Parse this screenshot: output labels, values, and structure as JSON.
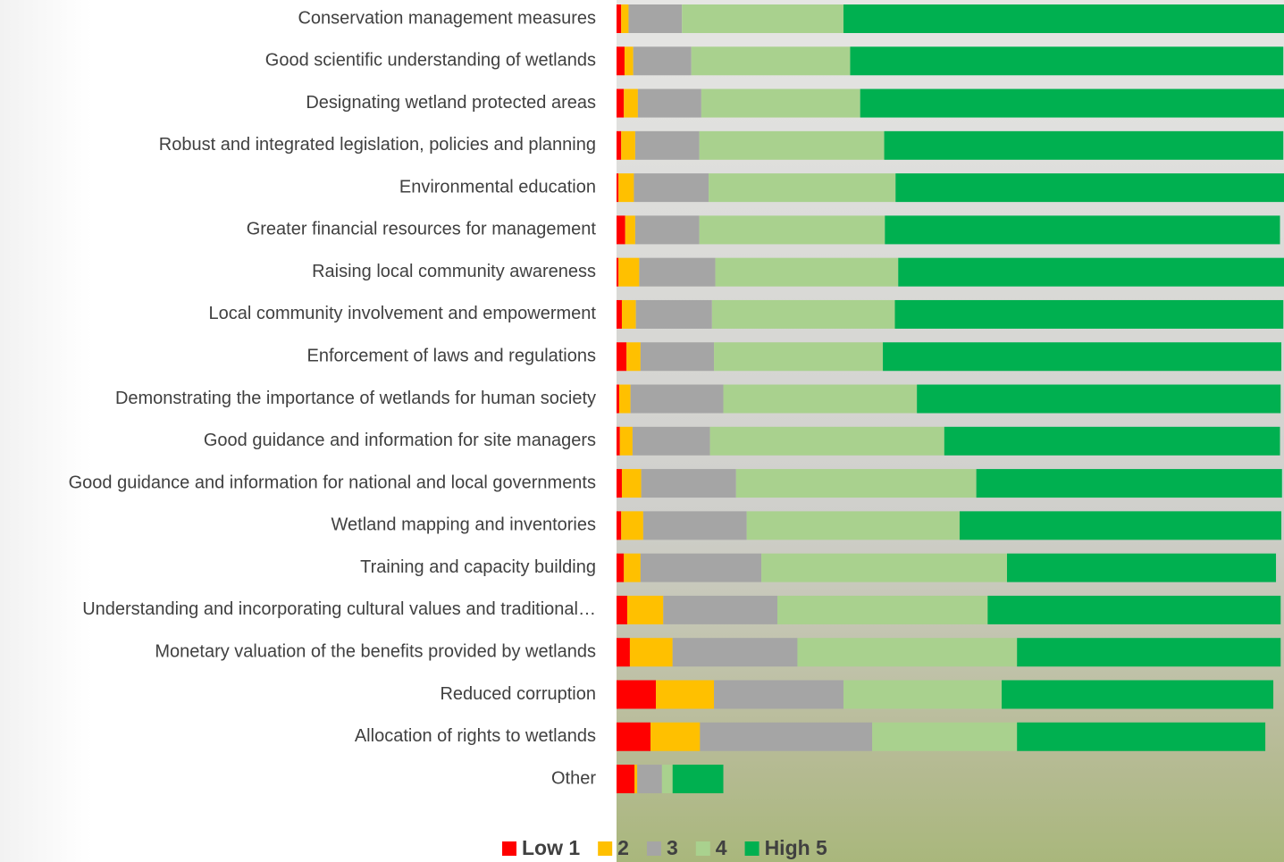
{
  "chart_data": {
    "type": "stacked-barh",
    "categories": [
      "Conservation management measures",
      "Good scientific understanding of wetlands",
      "Designating wetland protected areas",
      "Robust and integrated legislation, policies and planning",
      "Environmental education",
      "Greater financial resources for management",
      "Raising local community awareness",
      "Local community involvement and empowerment",
      "Enforcement of laws and regulations",
      "Demonstrating the importance of wetlands for human society",
      "Good guidance and information for site managers",
      "Good guidance and information for national and local governments",
      "Wetland mapping and inventories",
      "Training and capacity building",
      "Understanding and incorporating cultural values and traditional…",
      "Monetary valuation of the benefits provided by wetlands",
      "Reduced corruption",
      "Allocation of rights to wetlands",
      "Other"
    ],
    "series": [
      {
        "name": "Low 1",
        "color": "#ff0000",
        "values": [
          0.7,
          1.2,
          1.1,
          0.7,
          0.3,
          1.3,
          0.3,
          0.8,
          1.5,
          0.4,
          0.5,
          0.8,
          0.7,
          1.1,
          1.6,
          2.0,
          5.9,
          5.1,
          2.7
        ]
      },
      {
        "name": "2",
        "color": "#ffc000",
        "values": [
          1.1,
          1.3,
          2.1,
          2.1,
          2.3,
          1.5,
          3.1,
          2.1,
          2.1,
          1.7,
          1.9,
          2.9,
          3.3,
          2.5,
          5.4,
          6.4,
          8.7,
          7.4,
          0.4
        ]
      },
      {
        "name": "3",
        "color": "#a5a5a5",
        "values": [
          8.0,
          8.7,
          9.5,
          9.6,
          11.2,
          9.6,
          11.4,
          11.4,
          11.0,
          13.9,
          11.6,
          14.2,
          15.5,
          18.1,
          17.1,
          18.7,
          19.4,
          25.8,
          3.7
        ]
      },
      {
        "name": "4",
        "color": "#a9d18e",
        "values": [
          24.2,
          23.8,
          23.8,
          27.7,
          28.0,
          27.8,
          27.4,
          27.4,
          25.3,
          29.0,
          35.1,
          36.0,
          31.9,
          36.8,
          31.5,
          32.9,
          23.7,
          21.7,
          1.6
        ]
      },
      {
        "name": "High 5",
        "color": "#00b050",
        "values": [
          66.0,
          64.9,
          63.5,
          59.8,
          58.2,
          59.2,
          57.8,
          58.2,
          59.7,
          54.5,
          50.3,
          45.8,
          48.2,
          40.3,
          43.9,
          39.5,
          40.7,
          37.2,
          7.6
        ]
      }
    ],
    "xlim": [
      0,
      100
    ],
    "legend": "bottom"
  }
}
